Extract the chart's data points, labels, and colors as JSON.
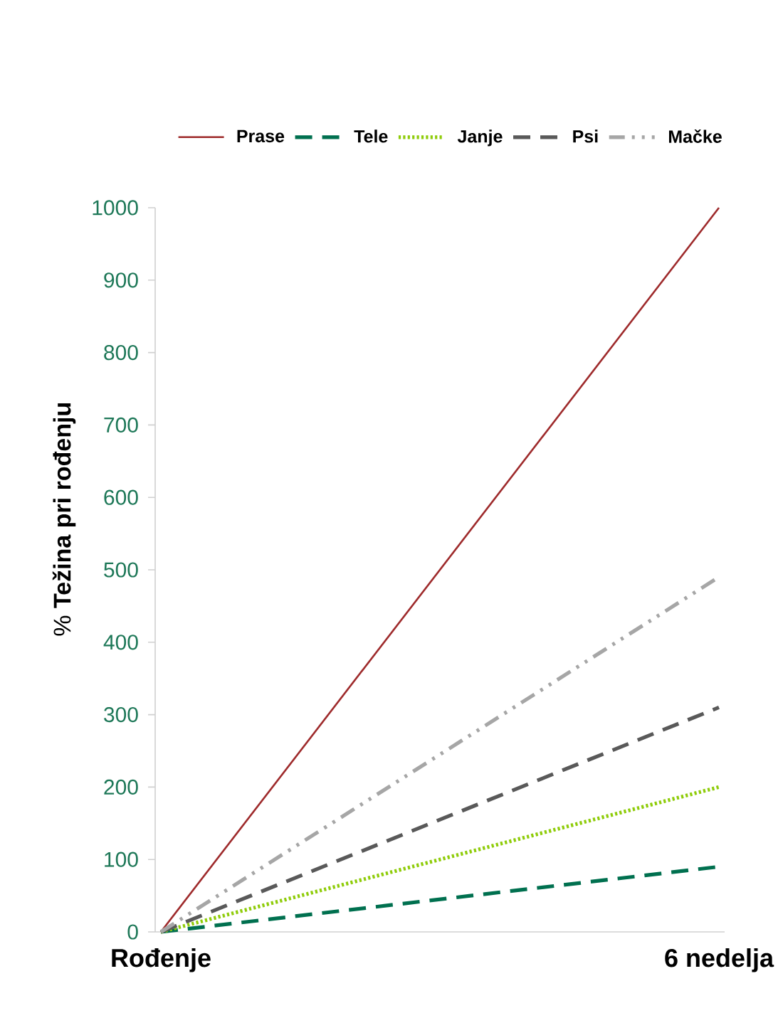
{
  "chart_data": {
    "type": "line",
    "ylabel": "% **Težina pri rođenju**",
    "categories": [
      "Rođenje",
      "6 nedelja"
    ],
    "series": [
      {
        "name": "Prase",
        "color": "#9e2a2b",
        "values": [
          0,
          1000
        ],
        "line_style": "solid"
      },
      {
        "name": "Tele",
        "color": "#00704f",
        "values": [
          0,
          90
        ],
        "line_style": "dashed"
      },
      {
        "name": "Janje",
        "color": "#8fcc0a",
        "values": [
          0,
          200
        ],
        "line_style": "dotted"
      },
      {
        "name": "Psi",
        "color": "#595959",
        "values": [
          0,
          310
        ],
        "line_style": "dashed"
      },
      {
        "name": "Mačke",
        "color": "#a6a6a6",
        "values": [
          0,
          490
        ],
        "line_style": "dashdot"
      }
    ],
    "ylim": [
      0,
      1000
    ],
    "yticks": [
      0,
      100,
      200,
      300,
      400,
      500,
      600,
      700,
      800,
      900,
      1000
    ],
    "legend": "top"
  }
}
